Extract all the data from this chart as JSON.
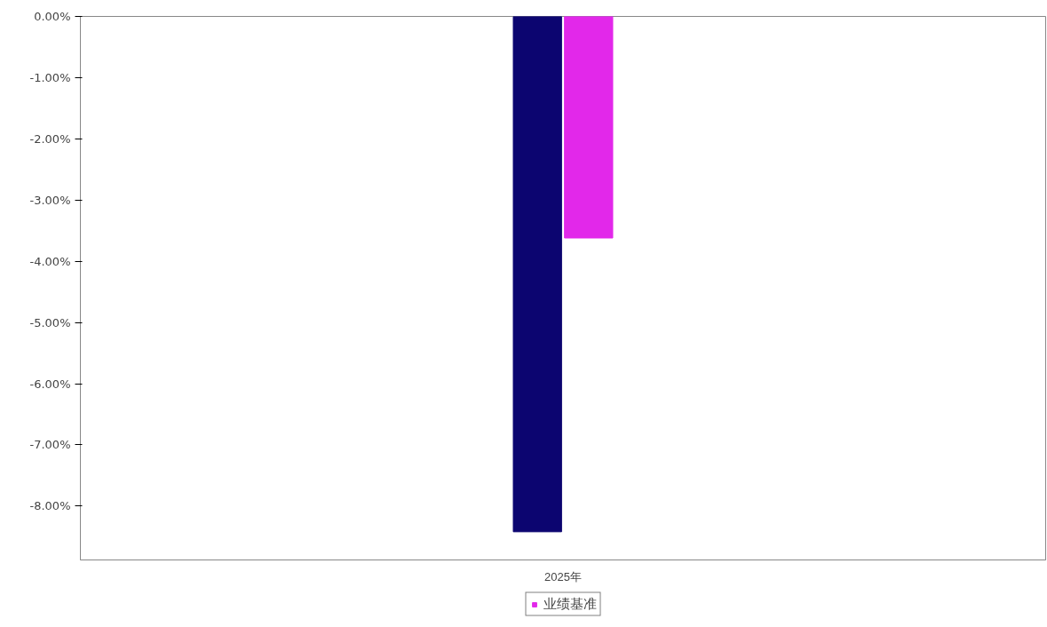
{
  "chart_data": {
    "type": "bar",
    "categories": [
      "2025年"
    ],
    "series": [
      {
        "color": "#0c0570",
        "values": [
          -8.42
        ]
      },
      {
        "name": "业绩基准",
        "color": "#e228ea",
        "values": [
          -3.62
        ]
      }
    ],
    "ylim": [
      -8.88,
      0
    ],
    "yticks": [
      {
        "value": 0,
        "label": "0.00%"
      },
      {
        "value": -1,
        "label": "-1.00%"
      },
      {
        "value": -2,
        "label": "-2.00%"
      },
      {
        "value": -3,
        "label": "-3.00%"
      },
      {
        "value": -4,
        "label": "-4.00%"
      },
      {
        "value": -5,
        "label": "-5.00%"
      },
      {
        "value": -6,
        "label": "-6.00%"
      },
      {
        "value": -7,
        "label": "-7.00%"
      },
      {
        "value": -8,
        "label": "-8.00%"
      }
    ],
    "grid": false,
    "legend": "bottom"
  }
}
